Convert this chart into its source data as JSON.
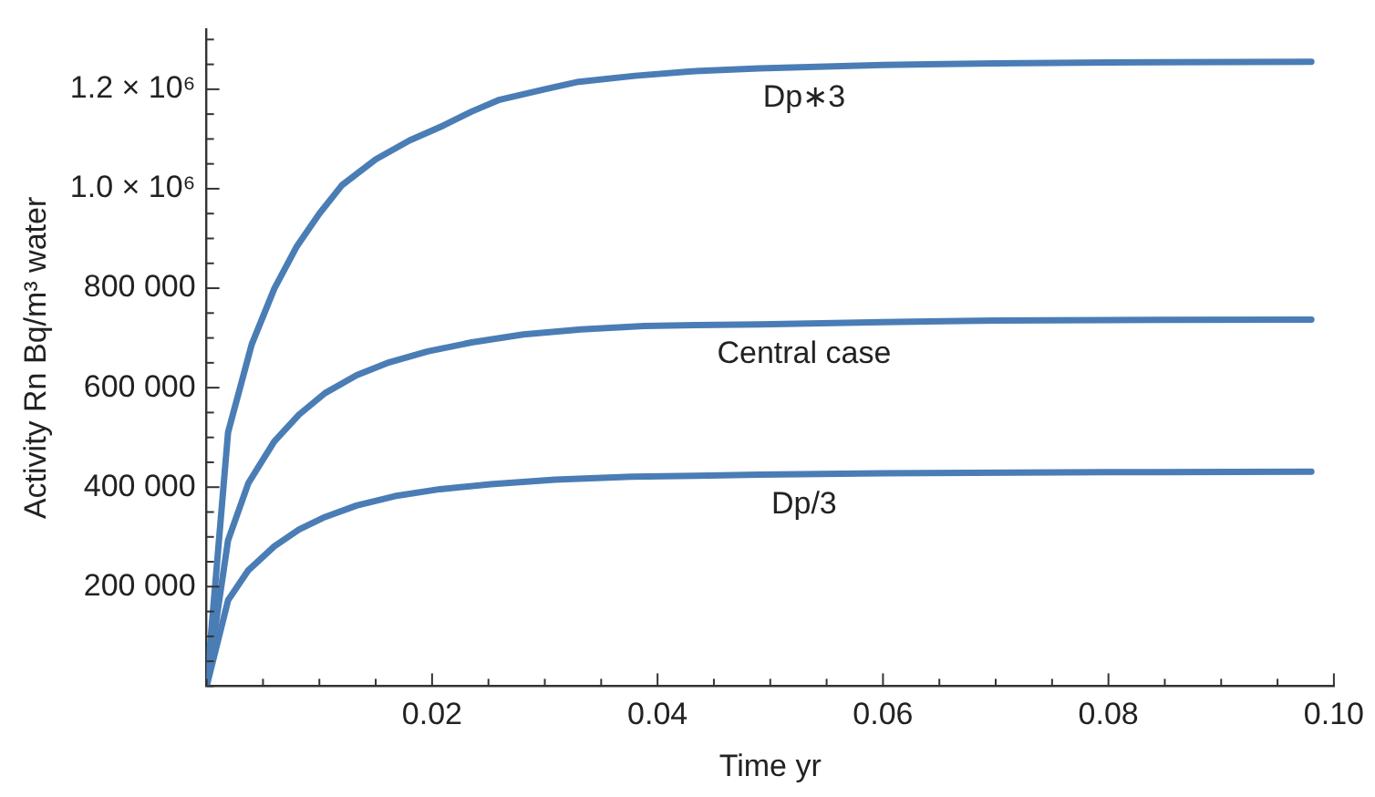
{
  "chart_data": {
    "type": "line",
    "xlabel": "Time yr",
    "ylabel": "Activity Rn Bq/m³ water",
    "xlim": [
      0,
      0.1
    ],
    "ylim": [
      0,
      1320000
    ],
    "xticks": [
      {
        "value": 0,
        "label": null
      },
      {
        "value": 0.005,
        "label": null
      },
      {
        "value": 0.01,
        "label": null
      },
      {
        "value": 0.015,
        "label": null
      },
      0.02,
      {
        "value": 0.025,
        "label": null
      },
      {
        "value": 0.03,
        "label": null
      },
      {
        "value": 0.035,
        "label": null
      },
      0.04,
      {
        "value": 0.045,
        "label": null
      },
      {
        "value": 0.05,
        "label": null
      },
      {
        "value": 0.055,
        "label": null
      },
      0.06,
      {
        "value": 0.065,
        "label": null
      },
      {
        "value": 0.07,
        "label": null
      },
      {
        "value": 0.075,
        "label": null
      },
      0.08,
      {
        "value": 0.085,
        "label": null
      },
      {
        "value": 0.09,
        "label": null
      },
      {
        "value": 0.095,
        "label": null
      },
      {
        "value": 0.1,
        "label": "0.10"
      }
    ],
    "yticks": [
      {
        "value": 0,
        "label": null
      },
      {
        "value": 50000,
        "label": null
      },
      {
        "value": 100000,
        "label": null
      },
      {
        "value": 150000,
        "label": null
      },
      {
        "value": 200000,
        "label": "200 000"
      },
      {
        "value": 250000,
        "label": null
      },
      {
        "value": 300000,
        "label": null
      },
      {
        "value": 350000,
        "label": null
      },
      {
        "value": 400000,
        "label": "400 000"
      },
      {
        "value": 450000,
        "label": null
      },
      {
        "value": 500000,
        "label": null
      },
      {
        "value": 550000,
        "label": null
      },
      {
        "value": 600000,
        "label": "600 000"
      },
      {
        "value": 650000,
        "label": null
      },
      {
        "value": 700000,
        "label": null
      },
      {
        "value": 750000,
        "label": null
      },
      {
        "value": 800000,
        "label": "800 000"
      },
      {
        "value": 850000,
        "label": null
      },
      {
        "value": 900000,
        "label": null
      },
      {
        "value": 950000,
        "label": null
      },
      {
        "value": 1000000,
        "label": "1.0 × 10⁶"
      },
      {
        "value": 1050000,
        "label": null
      },
      {
        "value": 1100000,
        "label": null
      },
      {
        "value": 1150000,
        "label": null
      },
      {
        "value": 1200000,
        "label": "1.2 × 10⁶"
      },
      {
        "value": 1250000,
        "label": null
      },
      {
        "value": 1300000,
        "label": null
      }
    ],
    "series": [
      {
        "name": "Dp∗3",
        "color": "#4a7db5",
        "x": [
          0,
          0.0019,
          0.004,
          0.006,
          0.008,
          0.01,
          0.012,
          0.015,
          0.018,
          0.021,
          0.0235,
          0.026,
          0.03,
          0.033,
          0.038,
          0.043,
          0.049,
          0.06,
          0.07,
          0.08,
          0.098
        ],
        "values": [
          0,
          510000,
          687000,
          799000,
          884000,
          950000,
          1007000,
          1059000,
          1097000,
          1127000,
          1155000,
          1179000,
          1200000,
          1215000,
          1227000,
          1236000,
          1242000,
          1249000,
          1252000,
          1254000,
          1255000
        ]
      },
      {
        "name": "Central case",
        "color": "#4a7db5",
        "x": [
          0,
          0.0019,
          0.0037,
          0.006,
          0.0082,
          0.0105,
          0.0133,
          0.0162,
          0.0196,
          0.0235,
          0.0281,
          0.0332,
          0.0388,
          0.0434,
          0.049,
          0.06,
          0.07,
          0.08,
          0.098
        ],
        "values": [
          0,
          293000,
          408000,
          492000,
          546000,
          589000,
          625000,
          651000,
          673000,
          691000,
          707000,
          717000,
          724000,
          726000,
          727000,
          732000,
          735000,
          736000,
          737000
        ]
      },
      {
        "name": "Dp/3",
        "color": "#4a7db5",
        "x": [
          0,
          0.0019,
          0.0037,
          0.006,
          0.0082,
          0.0105,
          0.0133,
          0.0167,
          0.0207,
          0.0252,
          0.0309,
          0.0377,
          0.0434,
          0.049,
          0.06,
          0.08,
          0.098
        ],
        "values": [
          0,
          172500,
          233000,
          281000,
          315000,
          340000,
          363000,
          382000,
          396000,
          406000,
          415000,
          421000,
          423000,
          425000,
          428000,
          430000,
          431000
        ]
      }
    ]
  }
}
